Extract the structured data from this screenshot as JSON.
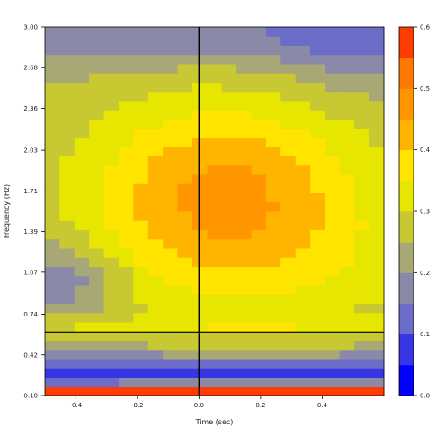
{
  "chart_data": {
    "type": "heatmap",
    "title": "",
    "xlabel": "Time (sec)",
    "ylabel": "Frequency (Hz)",
    "xlim": [
      -0.5,
      0.6
    ],
    "ylim": [
      0.1,
      3.0
    ],
    "x_ticks": [
      -0.4,
      -0.2,
      0.0,
      0.2,
      0.4
    ],
    "x_tick_labels": [
      "-0.4",
      "-0.2",
      "0.0",
      "0.2",
      "0.4"
    ],
    "y_ticks": [
      0.1,
      0.42,
      0.74,
      1.07,
      1.39,
      1.71,
      2.03,
      2.36,
      2.68,
      3.0
    ],
    "y_tick_labels": [
      "0.10",
      "0.42",
      "0.74",
      "1.07",
      "1.39",
      "1.71",
      "2.03",
      "2.36",
      "2.68",
      "3.00"
    ],
    "vertical_line_x": 0.0,
    "horizontal_line_y": 0.6,
    "colorbar": {
      "range": [
        0.0,
        0.6
      ],
      "ticks": [
        0.0,
        0.1,
        0.2,
        0.3,
        0.4,
        0.5,
        0.6
      ],
      "tick_labels": [
        "0.0",
        "0.1",
        "0.2",
        "0.3",
        "0.4",
        "0.5",
        "0.6"
      ],
      "levels": [
        0.0,
        0.05,
        0.1,
        0.15,
        0.2,
        0.25,
        0.3,
        0.35,
        0.4,
        0.45,
        0.5,
        0.55,
        0.6
      ],
      "colors": [
        "#0000ff",
        "#3636e4",
        "#6c6cc9",
        "#8a8aa8",
        "#a8a876",
        "#c8c832",
        "#e6e600",
        "#ffe400",
        "#ffb400",
        "#ff9600",
        "#ff7800",
        "#ff3c00"
      ]
    },
    "grid": {
      "nx": 23,
      "ny": 40
    }
  }
}
